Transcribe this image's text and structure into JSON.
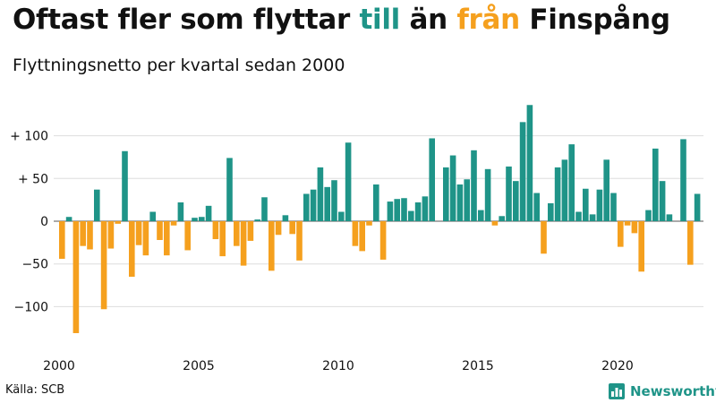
{
  "header": {
    "title_parts": [
      "Oftast fler som flyttar ",
      "till",
      " än ",
      "från",
      " Finspång"
    ],
    "subtitle": "Flyttningsnetto per kvartal sedan 2000"
  },
  "footer": {
    "source": "Källa: SCB",
    "brand": "Newsworthy",
    "brand_icon": "bar-chart-logo-icon"
  },
  "colors": {
    "positive": "#1f9488",
    "negative": "#f5a01e",
    "grid": "#dddddd",
    "text": "#111111"
  },
  "chart_data": {
    "type": "bar",
    "title": "Oftast fler som flyttar till än från Finspång",
    "subtitle": "Flyttningsnetto per kvartal sedan 2000",
    "x_start_year": 2000,
    "periods_per_year": 4,
    "xlim": [
      2000,
      2023.75
    ],
    "ylim": [
      -140,
      140
    ],
    "grid": true,
    "y_ticks": [
      {
        "value": 100,
        "label": "+ 100"
      },
      {
        "value": 50,
        "label": "+  50"
      },
      {
        "value": 0,
        "label": "0"
      },
      {
        "value": -50,
        "label": "−50"
      },
      {
        "value": -100,
        "label": "−100"
      }
    ],
    "x_ticks": [
      {
        "value": 2000,
        "label": "2000"
      },
      {
        "value": 2005,
        "label": "2005"
      },
      {
        "value": 2010,
        "label": "2010"
      },
      {
        "value": 2015,
        "label": "2015"
      },
      {
        "value": 2020,
        "label": "2020"
      }
    ],
    "values": [
      -44,
      5,
      -131,
      -29,
      -33,
      37,
      -103,
      -32,
      -3,
      82,
      -65,
      -28,
      -40,
      11,
      -22,
      -40,
      -5,
      22,
      -34,
      4,
      5,
      18,
      -21,
      -41,
      74,
      -29,
      -52,
      -23,
      2,
      28,
      -58,
      -16,
      7,
      -15,
      -46,
      32,
      37,
      63,
      40,
      48,
      11,
      92,
      -29,
      -35,
      -5,
      43,
      -45,
      23,
      26,
      27,
      12,
      22,
      29,
      97,
      0,
      63,
      77,
      43,
      49,
      83,
      13,
      61,
      -5,
      6,
      64,
      47,
      116,
      136,
      33,
      -38,
      21,
      63,
      72,
      90,
      11,
      38,
      8,
      37,
      72,
      33,
      -30,
      -5,
      -14,
      -59,
      13,
      85,
      47,
      8,
      0,
      96,
      -51,
      32
    ]
  }
}
